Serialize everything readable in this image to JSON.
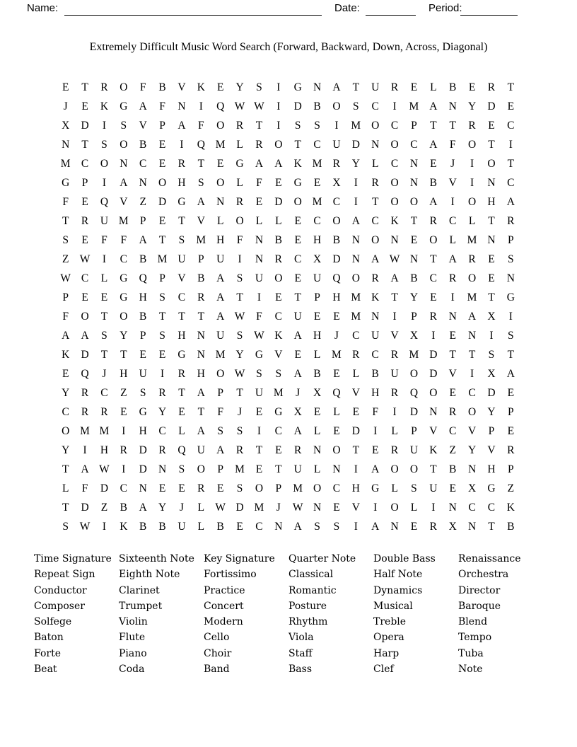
{
  "header": {
    "name_label": "Name:",
    "date_label": "Date:",
    "period_label": "Period:"
  },
  "title": "Extremely Difficult Music Word Search (Forward, Backward, Down, Across, Diagonal)",
  "puzzle_grid": {
    "rows": [
      "ETROFBVKEYSIGNATURELBERT",
      "JEKGAFNIQWWIDBOSCIMANYDE",
      "XDISVPAFORTISSIMOCPTTREC",
      "NTSOBEIQMLROTCUDNOCAFOTI",
      "MCONCERTEGAAKMRYLCNEJIOT",
      "GPIANOHSOLFEGEXIRONBVINC",
      "FEQVZDGANREDOMCITOOAIOHA",
      "TRUMPETVLOLLECOACKTRCLTR",
      "SEFFATSMHFNBEHBNONEOLMNP",
      "ZWICBMUPUINRCXDNAWNTARES",
      "WCLGQPVBASUOEUQORABCROEN",
      "PEEGHSCRATIETPHMKTYEIMTG",
      "FOTOBTTTAWFCUEEMNIPRNAXI",
      "AASYPSHNUSWKAHJCUVXIENIS",
      "KDTTEEGNMYGVELMRCRMDTTST",
      "EQJHUIRHOWSSABELBUODVIXA",
      "YRCZSRTAPTUMJXQVHRQOECDE",
      "CRREGYETFJEGXELEFIDNROYP",
      "OMMIHCLASSICALEDILPVCVPE",
      "YIHRDRQUARTERNOTERUKZYVR",
      "TAWIDNSOPMETULNIAOOTBNHP",
      "LFDCNEERESOPMOCHGLSUEXGZ",
      "TDZBAYJLWDMJWNEVIOLINCCK",
      "SWIKBBULBECNASSIANERXNTB"
    ]
  },
  "word_list": {
    "columns": [
      [
        "Time Signature",
        "Repeat Sign",
        "Conductor",
        "Composer",
        "Solfege",
        "Baton",
        "Forte",
        "Beat"
      ],
      [
        "Sixteenth Note",
        "Eighth Note",
        "Clarinet",
        "Trumpet",
        "Violin",
        "Flute",
        "Piano",
        "Coda"
      ],
      [
        "Key Signature",
        "Fortissimo",
        "Practice",
        "Concert",
        "Modern",
        "Cello",
        "Choir",
        "Band"
      ],
      [
        "Quarter Note",
        "Classical",
        "Romantic",
        "Posture",
        "Rhythm",
        "Viola",
        "Staff",
        "Bass"
      ],
      [
        "Double Bass",
        "Half Note",
        "Dynamics",
        "Musical",
        "Treble",
        "Opera",
        "Harp",
        "Clef"
      ],
      [
        "Renaissance",
        "Orchestra",
        "Director",
        "Baroque",
        "Blend",
        "Tempo",
        "Tuba",
        "Note"
      ]
    ]
  },
  "colors": {
    "text": "#000000",
    "background": "#ffffff"
  }
}
